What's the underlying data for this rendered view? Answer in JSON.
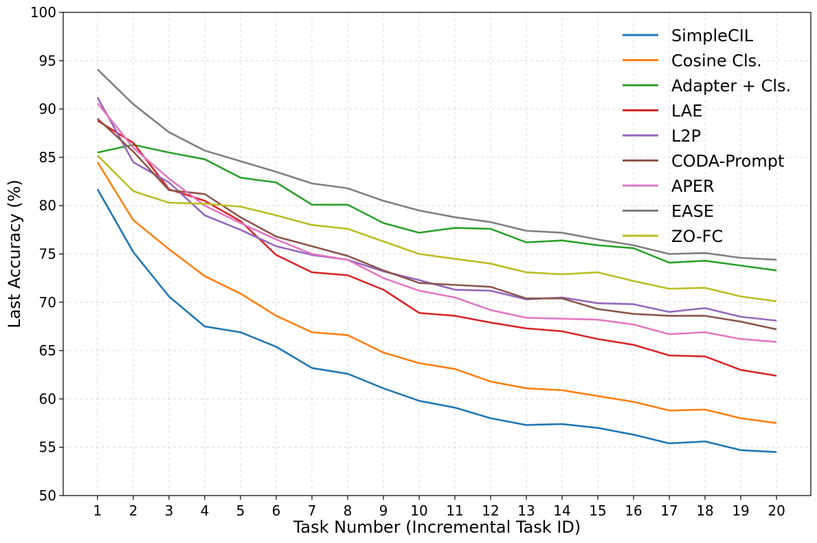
{
  "chart_data": {
    "type": "line",
    "title": "",
    "xlabel": "Task Number (Incremental Task ID)",
    "ylabel": "Last Accuracy (%)",
    "x": [
      1,
      2,
      3,
      4,
      5,
      6,
      7,
      8,
      9,
      10,
      11,
      12,
      13,
      14,
      15,
      16,
      17,
      18,
      19,
      20
    ],
    "xlim": [
      0.04,
      20.96
    ],
    "ylim": [
      50,
      100
    ],
    "yticks": [
      50,
      55,
      60,
      65,
      70,
      75,
      80,
      85,
      90,
      95,
      100
    ],
    "grid": true,
    "legend_position": "top-right",
    "series": [
      {
        "name": "SimpleCIL",
        "color": "#1f77b4",
        "values": [
          81.7,
          75.2,
          70.6,
          67.5,
          66.9,
          65.4,
          63.2,
          62.6,
          61.1,
          59.8,
          59.1,
          58.0,
          57.3,
          57.4,
          57.0,
          56.3,
          55.4,
          55.6,
          54.7,
          54.5
        ]
      },
      {
        "name": "Cosine Cls.",
        "color": "#ff7f0e",
        "values": [
          84.5,
          78.5,
          75.5,
          72.7,
          70.9,
          68.6,
          66.9,
          66.6,
          64.8,
          63.7,
          63.1,
          61.8,
          61.1,
          60.9,
          60.3,
          59.7,
          58.8,
          58.9,
          58.0,
          57.5
        ]
      },
      {
        "name": "Adapter + Cls.",
        "color": "#2ca02c",
        "values": [
          85.5,
          86.3,
          85.5,
          84.8,
          82.9,
          82.4,
          80.1,
          80.1,
          78.2,
          77.2,
          77.7,
          77.6,
          76.2,
          76.4,
          75.9,
          75.6,
          74.1,
          74.3,
          73.8,
          73.3
        ]
      },
      {
        "name": "LAE",
        "color": "#d62728",
        "values": [
          88.8,
          86.5,
          81.7,
          80.5,
          78.4,
          74.9,
          73.1,
          72.8,
          71.3,
          68.9,
          68.6,
          67.9,
          67.3,
          67.0,
          66.2,
          65.6,
          64.5,
          64.4,
          63.0,
          62.4
        ]
      },
      {
        "name": "L2P",
        "color": "#9467bd",
        "values": [
          91.2,
          84.5,
          82.4,
          79.0,
          77.5,
          75.8,
          74.9,
          74.4,
          73.2,
          72.3,
          71.3,
          71.2,
          70.3,
          70.5,
          69.9,
          69.8,
          69.0,
          69.4,
          68.5,
          68.1
        ]
      },
      {
        "name": "CODA-Prompt",
        "color": "#8c564b",
        "values": [
          89.0,
          85.6,
          81.6,
          81.2,
          78.8,
          76.8,
          75.8,
          74.8,
          73.3,
          72.0,
          71.8,
          71.6,
          70.4,
          70.4,
          69.3,
          68.8,
          68.6,
          68.6,
          68.0,
          67.2
        ]
      },
      {
        "name": "APER",
        "color": "#e377c2",
        "values": [
          90.6,
          86.0,
          82.8,
          80.0,
          78.2,
          76.5,
          75.0,
          74.4,
          72.5,
          71.2,
          70.5,
          69.2,
          68.4,
          68.3,
          68.2,
          67.7,
          66.7,
          66.9,
          66.2,
          65.9
        ]
      },
      {
        "name": "EASE",
        "color": "#7f7f7f",
        "values": [
          94.1,
          90.5,
          87.6,
          85.7,
          84.6,
          83.5,
          82.3,
          81.8,
          80.5,
          79.5,
          78.8,
          78.3,
          77.4,
          77.2,
          76.5,
          75.9,
          75.0,
          75.1,
          74.6,
          74.4
        ]
      },
      {
        "name": "ZO-FC",
        "color": "#bcbd22",
        "values": [
          85.2,
          81.5,
          80.3,
          80.2,
          79.9,
          79.0,
          78.0,
          77.6,
          76.3,
          75.0,
          74.5,
          74.0,
          73.1,
          72.9,
          73.1,
          72.2,
          71.4,
          71.5,
          70.6,
          70.1
        ]
      }
    ]
  }
}
